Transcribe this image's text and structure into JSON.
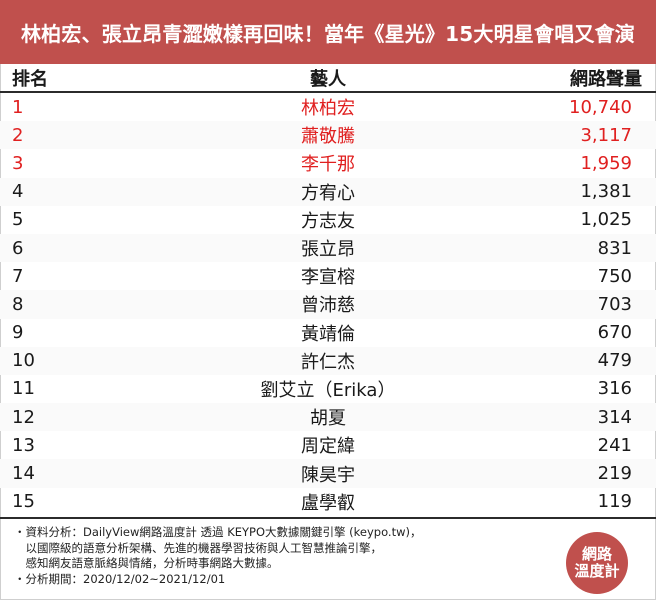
{
  "title": "林柏宏、張立昂青澀嫩樣再回味！當年《星光》15大明星會唱又會演",
  "table": {
    "headers": {
      "rank": "排名",
      "artist": "藝人",
      "volume": "網路聲量"
    },
    "rows": [
      {
        "rank": "1",
        "artist": "林柏宏",
        "volume": "10,740",
        "highlight": true
      },
      {
        "rank": "2",
        "artist": "蕭敬騰",
        "volume": "3,117",
        "highlight": true
      },
      {
        "rank": "3",
        "artist": "李千那",
        "volume": "1,959",
        "highlight": true
      },
      {
        "rank": "4",
        "artist": "方宥心",
        "volume": "1,381",
        "highlight": false
      },
      {
        "rank": "5",
        "artist": "方志友",
        "volume": "1,025",
        "highlight": false
      },
      {
        "rank": "6",
        "artist": "張立昂",
        "volume": "831",
        "highlight": false
      },
      {
        "rank": "7",
        "artist": "李宣榕",
        "volume": "750",
        "highlight": false
      },
      {
        "rank": "8",
        "artist": "曾沛慈",
        "volume": "703",
        "highlight": false
      },
      {
        "rank": "9",
        "artist": "黃靖倫",
        "volume": "670",
        "highlight": false
      },
      {
        "rank": "10",
        "artist": "許仁杰",
        "volume": "479",
        "highlight": false
      },
      {
        "rank": "11",
        "artist": "劉艾立（Erika）",
        "volume": "316",
        "highlight": false
      },
      {
        "rank": "12",
        "artist": "胡夏",
        "volume": "314",
        "highlight": false
      },
      {
        "rank": "13",
        "artist": "周定緯",
        "volume": "241",
        "highlight": false
      },
      {
        "rank": "14",
        "artist": "陳昊宇",
        "volume": "219",
        "highlight": false
      },
      {
        "rank": "15",
        "artist": "盧學叡",
        "volume": "119",
        "highlight": false
      }
    ]
  },
  "notes": {
    "line1": "・資料分析：DailyView網路溫度計 透過 KEYPO大數據關鍵引擎 (keypo.tw)，",
    "line2": "　以國際級的語意分析架構、先進的機器學習技術與人工智慧推論引擎，",
    "line3": "　感知網友語意脈絡與情緒，分析時事網路大數據。",
    "line4": "・分析期間：2020/12/02~2021/12/01"
  },
  "badge": {
    "line1": "網路",
    "line2": "溫度計"
  },
  "colors": {
    "accent": "#c0504d",
    "highlight_text": "#e02020"
  }
}
